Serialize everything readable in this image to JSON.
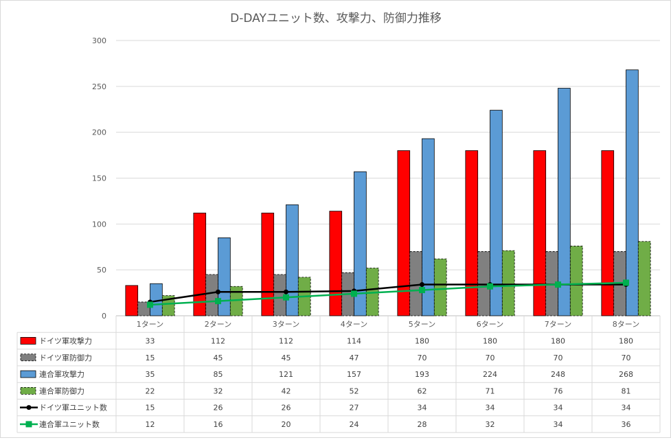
{
  "chart_data": {
    "type": "bar",
    "title": "D-DAYユニット数、攻撃力、防御力推移",
    "categories": [
      "1ターン",
      "2ターン",
      "3ターン",
      "4ターン",
      "5ターン",
      "6ターン",
      "7ターン",
      "8ターン"
    ],
    "ylim": [
      0,
      300
    ],
    "yticks": [
      0,
      50,
      100,
      150,
      200,
      250,
      300
    ],
    "grid": true,
    "legend": "data-table",
    "series": [
      {
        "name": "ドイツ軍攻撃力",
        "kind": "bar",
        "color": "#ff0000",
        "dashed": false,
        "values": [
          33,
          112,
          112,
          114,
          180,
          180,
          180,
          180
        ]
      },
      {
        "name": "ドイツ軍防御力",
        "kind": "bar",
        "color": "#808080",
        "dashed": true,
        "values": [
          15,
          45,
          45,
          47,
          70,
          70,
          70,
          70
        ]
      },
      {
        "name": "連合軍攻撃力",
        "kind": "bar",
        "color": "#5b9bd5",
        "dashed": false,
        "values": [
          35,
          85,
          121,
          157,
          193,
          224,
          248,
          268
        ]
      },
      {
        "name": "連合軍防御力",
        "kind": "bar",
        "color": "#70ad47",
        "dashed": true,
        "values": [
          22,
          32,
          42,
          52,
          62,
          71,
          76,
          81
        ]
      },
      {
        "name": "ドイツ軍ユニット数",
        "kind": "line",
        "color": "#000000",
        "marker": "circle",
        "values": [
          15,
          26,
          26,
          27,
          34,
          34,
          34,
          34
        ]
      },
      {
        "name": "連合軍ユニット数",
        "kind": "line",
        "color": "#00b050",
        "marker": "square",
        "values": [
          12,
          16,
          20,
          24,
          28,
          32,
          34,
          36
        ]
      }
    ]
  }
}
